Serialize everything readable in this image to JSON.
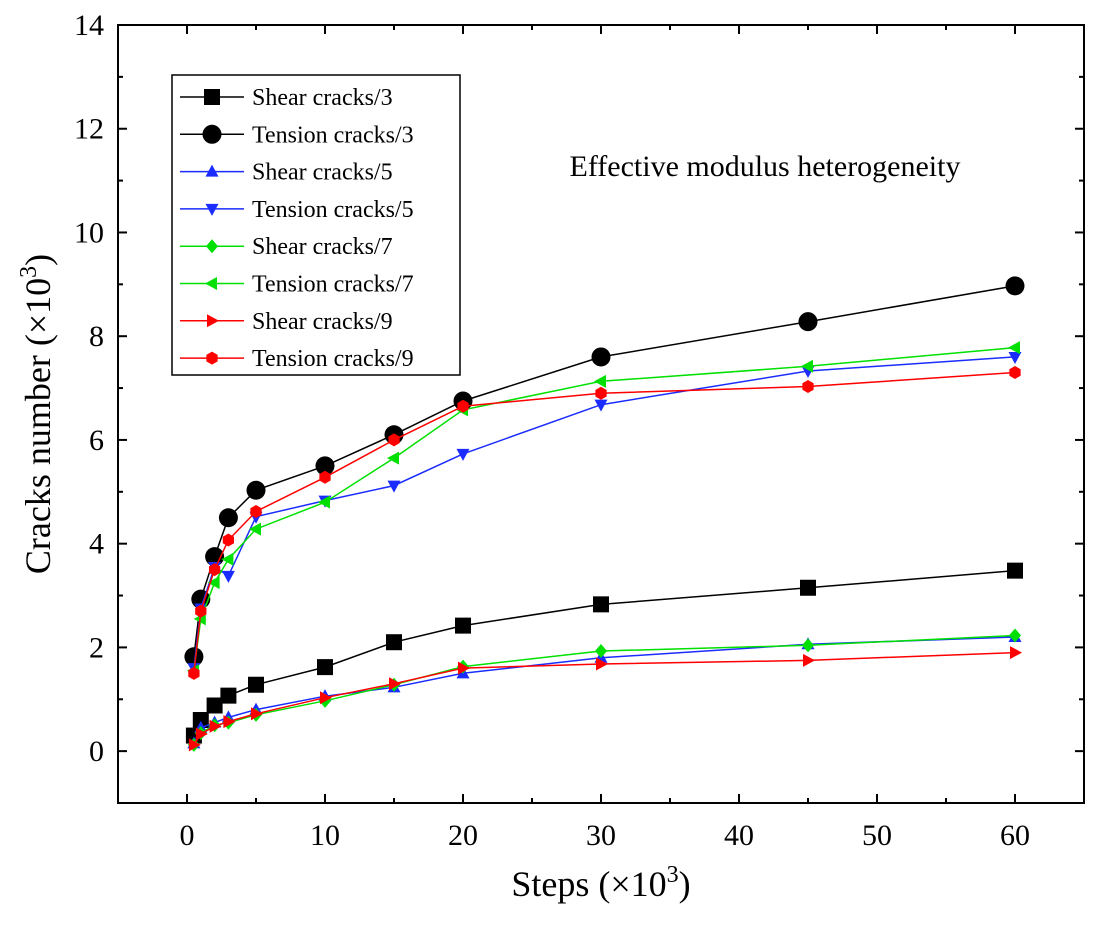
{
  "chart_data": {
    "type": "line",
    "title": "",
    "annotation": "Effective modulus heterogeneity",
    "xlabel": "Steps (×10",
    "xlabel_sup": "3",
    "xlabel_end": ")",
    "ylabel": "Cracks number (×10",
    "ylabel_sup": "3",
    "ylabel_end": ")",
    "xlim": [
      -5,
      65
    ],
    "ylim": [
      -1,
      14
    ],
    "xticks": [
      0,
      10,
      20,
      30,
      40,
      50,
      60
    ],
    "yticks": [
      0,
      2,
      4,
      6,
      8,
      10,
      12,
      14
    ],
    "x": [
      0.5,
      1,
      2,
      3,
      5,
      10,
      15,
      20,
      30,
      45,
      60
    ],
    "legend_position": "top-left",
    "series": [
      {
        "name": "Shear cracks/3",
        "color": "#000000",
        "marker": "square",
        "values": [
          0.3,
          0.6,
          0.88,
          1.07,
          1.28,
          1.62,
          2.1,
          2.42,
          2.83,
          3.15,
          3.48
        ]
      },
      {
        "name": "Tension cracks/3",
        "color": "#000000",
        "marker": "circle",
        "values": [
          1.82,
          2.93,
          3.75,
          4.5,
          5.03,
          5.5,
          6.1,
          6.75,
          7.6,
          8.28,
          8.97
        ]
      },
      {
        "name": "Shear cracks/5",
        "color": "#1a2cff",
        "marker": "triangle-up",
        "values": [
          0.15,
          0.45,
          0.55,
          0.65,
          0.8,
          1.06,
          1.23,
          1.5,
          1.8,
          2.06,
          2.2
        ]
      },
      {
        "name": "Tension cracks/5",
        "color": "#1a2cff",
        "marker": "triangle-down",
        "values": [
          1.6,
          2.75,
          3.55,
          3.38,
          4.52,
          4.83,
          5.12,
          5.73,
          6.68,
          7.33,
          7.6
        ]
      },
      {
        "name": "Shear cracks/7",
        "color": "#00e000",
        "marker": "diamond",
        "values": [
          0.12,
          0.35,
          0.5,
          0.55,
          0.7,
          0.97,
          1.28,
          1.63,
          1.93,
          2.04,
          2.23
        ]
      },
      {
        "name": "Tension cracks/7",
        "color": "#00e000",
        "marker": "triangle-left",
        "values": [
          1.55,
          2.55,
          3.25,
          3.7,
          4.28,
          4.8,
          5.65,
          6.58,
          7.13,
          7.42,
          7.78
        ]
      },
      {
        "name": "Shear cracks/9",
        "color": "#ff0000",
        "marker": "triangle-right",
        "values": [
          0.12,
          0.33,
          0.48,
          0.57,
          0.72,
          1.03,
          1.3,
          1.6,
          1.68,
          1.75,
          1.9
        ]
      },
      {
        "name": "Tension cracks/9",
        "color": "#ff0000",
        "marker": "hexagon",
        "values": [
          1.5,
          2.7,
          3.5,
          4.07,
          4.62,
          5.28,
          6.0,
          6.65,
          6.9,
          7.03,
          7.3
        ]
      }
    ]
  }
}
